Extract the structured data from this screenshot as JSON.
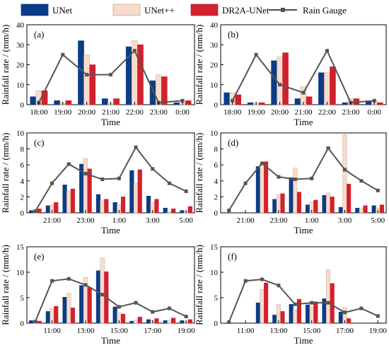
{
  "legend": {
    "colors": {
      "unet": "#0b3c86",
      "unetpp": "#f7dccb",
      "dr2a": "#d0222e",
      "gauge": "#555555"
    }
  },
  "chart_data": [
    {
      "type": "bar",
      "panel": "(a)",
      "title": "",
      "xlabel": "Time",
      "ylabel": "Rainfall rate / (mm/h)",
      "ylim": [
        0,
        40
      ],
      "yticks": [
        0,
        10,
        20,
        30,
        40
      ],
      "x_tick_labels": [
        "18:00",
        "19:00",
        "20:00",
        "21:00",
        "22:00",
        "23:00",
        "0:00"
      ],
      "bar_slots": [
        0,
        1,
        2,
        3,
        4,
        5,
        6
      ],
      "series": [
        {
          "name": "UNet",
          "values": [
            4,
            2,
            32,
            3,
            29,
            12,
            1
          ]
        },
        {
          "name": "UNet++",
          "values": [
            7,
            1,
            25,
            1,
            32,
            15,
            1
          ]
        },
        {
          "name": "DR2A-UNet",
          "values": [
            7,
            2,
            20,
            3,
            30,
            14,
            2
          ]
        }
      ],
      "line": {
        "name": "Rain Gauge",
        "x": [
          0,
          1,
          2,
          3,
          4,
          5,
          6
        ],
        "values": [
          1,
          25,
          15,
          15,
          27,
          1,
          2
        ]
      }
    },
    {
      "type": "bar",
      "panel": "(b)",
      "title": "",
      "xlabel": "Time",
      "ylabel": "",
      "ylim": [
        0,
        40
      ],
      "yticks": [
        0,
        10,
        20,
        30,
        40
      ],
      "x_tick_labels": [
        "18:00",
        "19:00",
        "20:00",
        "21:00",
        "22:00",
        "23:00",
        "0:00"
      ],
      "bar_slots": [
        0,
        1,
        2,
        3,
        4,
        5,
        6
      ],
      "series": [
        {
          "name": "UNet",
          "values": [
            6,
            1,
            22,
            3,
            16,
            1,
            2
          ]
        },
        {
          "name": "UNet++",
          "values": [
            6,
            1,
            24,
            9,
            16,
            3,
            2
          ]
        },
        {
          "name": "DR2A-UNet",
          "values": [
            5,
            1,
            26,
            4,
            19,
            3,
            1
          ]
        }
      ],
      "line": {
        "name": "Rain Gauge",
        "x": [
          0,
          1,
          2,
          3,
          4,
          5,
          6
        ],
        "values": [
          2,
          25,
          10,
          6,
          27,
          1,
          2
        ]
      }
    },
    {
      "type": "bar",
      "panel": "(c)",
      "title": "",
      "xlabel": "Time",
      "ylabel": "Rainfall rate / (mm/h)",
      "ylim": [
        0,
        10
      ],
      "yticks": [
        0,
        2,
        4,
        6,
        8,
        10
      ],
      "x_tick_labels": [
        "21:00",
        "23:00",
        "1:00",
        "3:00",
        "5:00"
      ],
      "bar_slots": [
        0,
        1,
        2,
        3,
        4,
        5,
        6,
        7,
        8,
        9
      ],
      "series": [
        {
          "name": "UNet",
          "values": [
            0.3,
            0.9,
            3.5,
            6.1,
            2.3,
            1.3,
            5.3,
            2.1,
            0.6,
            0.3
          ]
        },
        {
          "name": "UNet++",
          "values": [
            0.3,
            1.0,
            2.7,
            6.8,
            1.6,
            1.0,
            3.7,
            1.3,
            0.2,
            0.2
          ]
        },
        {
          "name": "DR2A-UNet",
          "values": [
            0.5,
            1.3,
            3.0,
            5.5,
            1.7,
            2.0,
            5.4,
            1.7,
            0.5,
            0.8
          ]
        }
      ],
      "line": {
        "name": "Rain Gauge",
        "x": [
          0,
          1,
          2,
          3,
          4,
          5,
          6,
          7,
          8,
          9
        ],
        "values": [
          0.2,
          3.7,
          6.1,
          4.9,
          4.2,
          4.3,
          8.2,
          5.5,
          3.7,
          2.7
        ]
      }
    },
    {
      "type": "bar",
      "panel": "(d)",
      "title": "",
      "xlabel": "Time",
      "ylabel": "",
      "ylim": [
        0,
        10
      ],
      "yticks": [
        0,
        2,
        4,
        6,
        8,
        10
      ],
      "x_tick_labels": [
        "21:00",
        "23:00",
        "1:00",
        "3:00",
        "5:00"
      ],
      "bar_slots": [
        0,
        1,
        2,
        3,
        4,
        5,
        6,
        7,
        8,
        9
      ],
      "series": [
        {
          "name": "UNet",
          "values": [
            0,
            0,
            5.8,
            1.7,
            4.4,
            1.0,
            2.2,
            0.7,
            0.6,
            0.9
          ]
        },
        {
          "name": "UNet++",
          "values": [
            0,
            0,
            6.2,
            2.3,
            5.6,
            1.4,
            2.5,
            9.8,
            0.5,
            0.6
          ]
        },
        {
          "name": "DR2A-UNet",
          "values": [
            0,
            0,
            6.4,
            2.4,
            2.6,
            1.6,
            2.0,
            3.6,
            0.9,
            1.0
          ]
        }
      ],
      "line": {
        "name": "Rain Gauge",
        "x": [
          0,
          1,
          2,
          3,
          4,
          5,
          6,
          7,
          8,
          9
        ],
        "values": [
          0.3,
          3.7,
          6.2,
          4.5,
          4.2,
          4.3,
          8.1,
          5.4,
          4.0,
          2.8
        ]
      }
    },
    {
      "type": "bar",
      "panel": "(e)",
      "title": "",
      "xlabel": "Time",
      "ylabel": "Rainfall rate / (mm/h)",
      "ylim": [
        0,
        15
      ],
      "yticks": [
        0,
        5,
        10,
        15
      ],
      "x_tick_labels": [
        "11:00",
        "13:00",
        "15:00",
        "17:00",
        "19:00"
      ],
      "bar_slots": [
        0,
        1,
        2,
        3,
        4,
        5,
        6,
        7,
        8,
        9
      ],
      "series": [
        {
          "name": "UNet",
          "values": [
            0.5,
            2.3,
            5.1,
            7.4,
            10.3,
            3.2,
            0.4,
            0.7,
            0.5,
            0.5
          ]
        },
        {
          "name": "UNet++",
          "values": [
            0.5,
            2.9,
            5.9,
            9.0,
            12.8,
            2.0,
            0.6,
            0.5,
            0.6,
            0.3
          ]
        },
        {
          "name": "DR2A-UNet",
          "values": [
            0.4,
            3.3,
            3.0,
            7.0,
            10.1,
            1.8,
            1.2,
            0.9,
            1.0,
            0.7
          ]
        }
      ],
      "line": {
        "name": "Rain Gauge",
        "x": [
          0,
          1,
          2,
          3,
          4,
          5,
          6,
          7,
          8,
          9
        ],
        "values": [
          0.3,
          8.3,
          8.7,
          7.5,
          5.6,
          3.2,
          4.0,
          2.2,
          2.9,
          1.3
        ]
      }
    },
    {
      "type": "bar",
      "panel": "(f)",
      "title": "",
      "xlabel": "Time",
      "ylabel": "",
      "ylim": [
        0,
        15
      ],
      "yticks": [
        0,
        5,
        10,
        15
      ],
      "x_tick_labels": [
        "11:00",
        "13:00",
        "15:00",
        "17:00",
        "19:00"
      ],
      "bar_slots": [
        2,
        3,
        4,
        5,
        6,
        7,
        8
      ],
      "series": [
        {
          "name": "UNet",
          "values": [
            4.0,
            1.6,
            3.7,
            3.6,
            4.8,
            2.2,
            0
          ]
        },
        {
          "name": "UNet++",
          "values": [
            6.6,
            3.7,
            2.6,
            3.2,
            10.5,
            3.0,
            0
          ]
        },
        {
          "name": "DR2A-UNet",
          "values": [
            7.9,
            2.3,
            4.7,
            4.2,
            7.8,
            0.9,
            0
          ]
        }
      ],
      "line": {
        "name": "Rain Gauge",
        "x": [
          0,
          1,
          2,
          3,
          4,
          5,
          6,
          7,
          8,
          9
        ],
        "values": [
          0.2,
          8.3,
          8.6,
          7.4,
          3.7,
          4.0,
          4.0,
          2.1,
          2.9,
          1.4
        ]
      }
    }
  ]
}
